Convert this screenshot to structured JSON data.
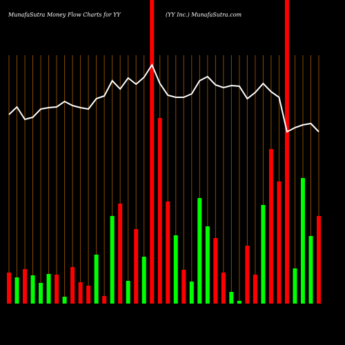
{
  "chart_data": {
    "type": "bar",
    "title": "MunafaSutra  Money Flow  Charts for YY",
    "subtitle": "(YY Inc.) MunafaSutra.com",
    "categories": [
      null,
      null,
      null,
      null,
      null,
      null,
      null,
      null,
      null,
      null,
      null,
      null,
      null,
      null,
      null,
      null,
      null,
      null,
      null,
      null,
      null,
      null,
      null,
      null,
      null,
      null,
      null,
      null,
      null,
      null,
      null,
      null,
      null,
      null,
      null,
      null,
      null,
      null,
      null,
      null
    ],
    "values": [
      45,
      38,
      50,
      41,
      30,
      43,
      42,
      10,
      53,
      31,
      26,
      71,
      11,
      127,
      145,
      33,
      108,
      68,
      440,
      269,
      148,
      99,
      49,
      32,
      153,
      112,
      95,
      45,
      17,
      4,
      84,
      42,
      143,
      224,
      177,
      440,
      51,
      182,
      98,
      127
    ],
    "colors": [
      "#ff0000",
      "#00ff00",
      "#ff0000",
      "#00ff00",
      "#00ff00",
      "#00ff00",
      "#ff0000",
      "#00ff00",
      "#ff0000",
      "#ff0000",
      "#ff0000",
      "#00ff00",
      "#ff0000",
      "#00ff00",
      "#ff0000",
      "#00ff00",
      "#ff0000",
      "#00ff00",
      "#ff0000",
      "#ff0000",
      "#ff0000",
      "#00ff00",
      "#ff0000",
      "#00ff00",
      "#00ff00",
      "#00ff00",
      "#ff0000",
      "#ff0000",
      "#00ff00",
      "#00ff00",
      "#ff0000",
      "#ff0000",
      "#00ff00",
      "#ff0000",
      "#ff0000",
      "#ff0000",
      "#00ff00",
      "#00ff00",
      "#00ff00",
      "#ff0000"
    ],
    "line_values": [
      274,
      285,
      267,
      270,
      282,
      284,
      285,
      293,
      287,
      284,
      282,
      297,
      301,
      323,
      311,
      327,
      318,
      328,
      346,
      319,
      302,
      299,
      299,
      304,
      323,
      329,
      317,
      313,
      316,
      315,
      297,
      306,
      319,
      307,
      299,
      249,
      255,
      259,
      261,
      249
    ],
    "line_color": "#ffffff",
    "grid_color": "#8b4a00"
  }
}
